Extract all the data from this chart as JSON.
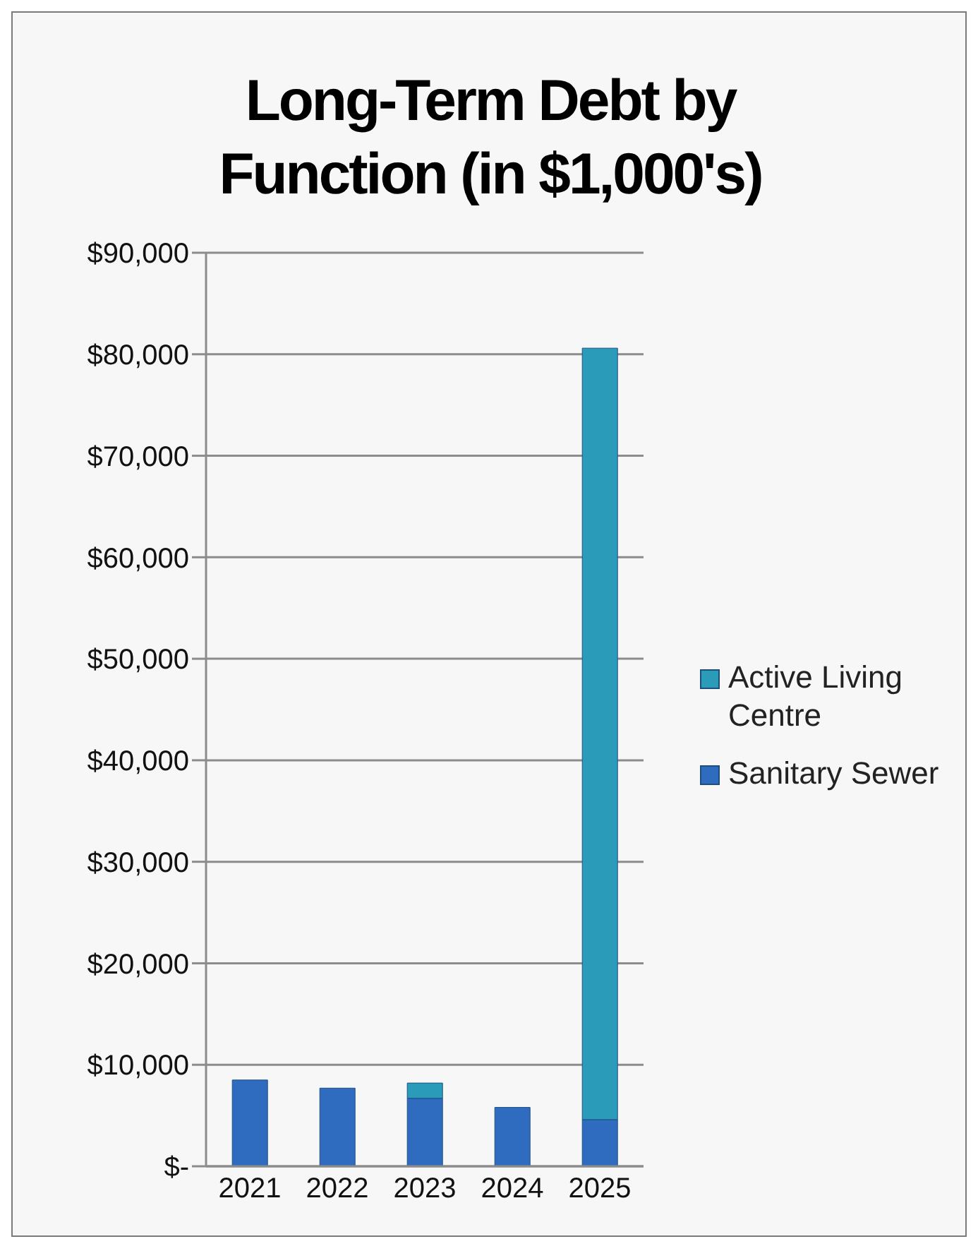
{
  "chart_data": {
    "type": "bar",
    "title": "Long-Term Debt by Function (in $1,000's)",
    "categories": [
      "2021",
      "2022",
      "2023",
      "2024",
      "2025"
    ],
    "series": [
      {
        "name": "Sanitary Sewer",
        "color": "#2f6cc0",
        "values": [
          8500,
          7700,
          6700,
          5800,
          4600
        ]
      },
      {
        "name": "Active Living Centre",
        "color": "#2a9cba",
        "values": [
          null,
          null,
          1500,
          null,
          76000
        ]
      }
    ],
    "stacked": true,
    "ylim": [
      0,
      90000
    ],
    "yticks": [
      {
        "value": 0,
        "label": "$-"
      },
      {
        "value": 10000,
        "label": "$10,000"
      },
      {
        "value": 20000,
        "label": "$20,000"
      },
      {
        "value": 30000,
        "label": "$30,000"
      },
      {
        "value": 40000,
        "label": "$40,000"
      },
      {
        "value": 50000,
        "label": "$50,000"
      },
      {
        "value": 60000,
        "label": "$60,000"
      },
      {
        "value": 70000,
        "label": "$70,000"
      },
      {
        "value": 80000,
        "label": "$80,000"
      },
      {
        "value": 90000,
        "label": "$90,000"
      }
    ],
    "grid": "y",
    "legend": "right"
  }
}
